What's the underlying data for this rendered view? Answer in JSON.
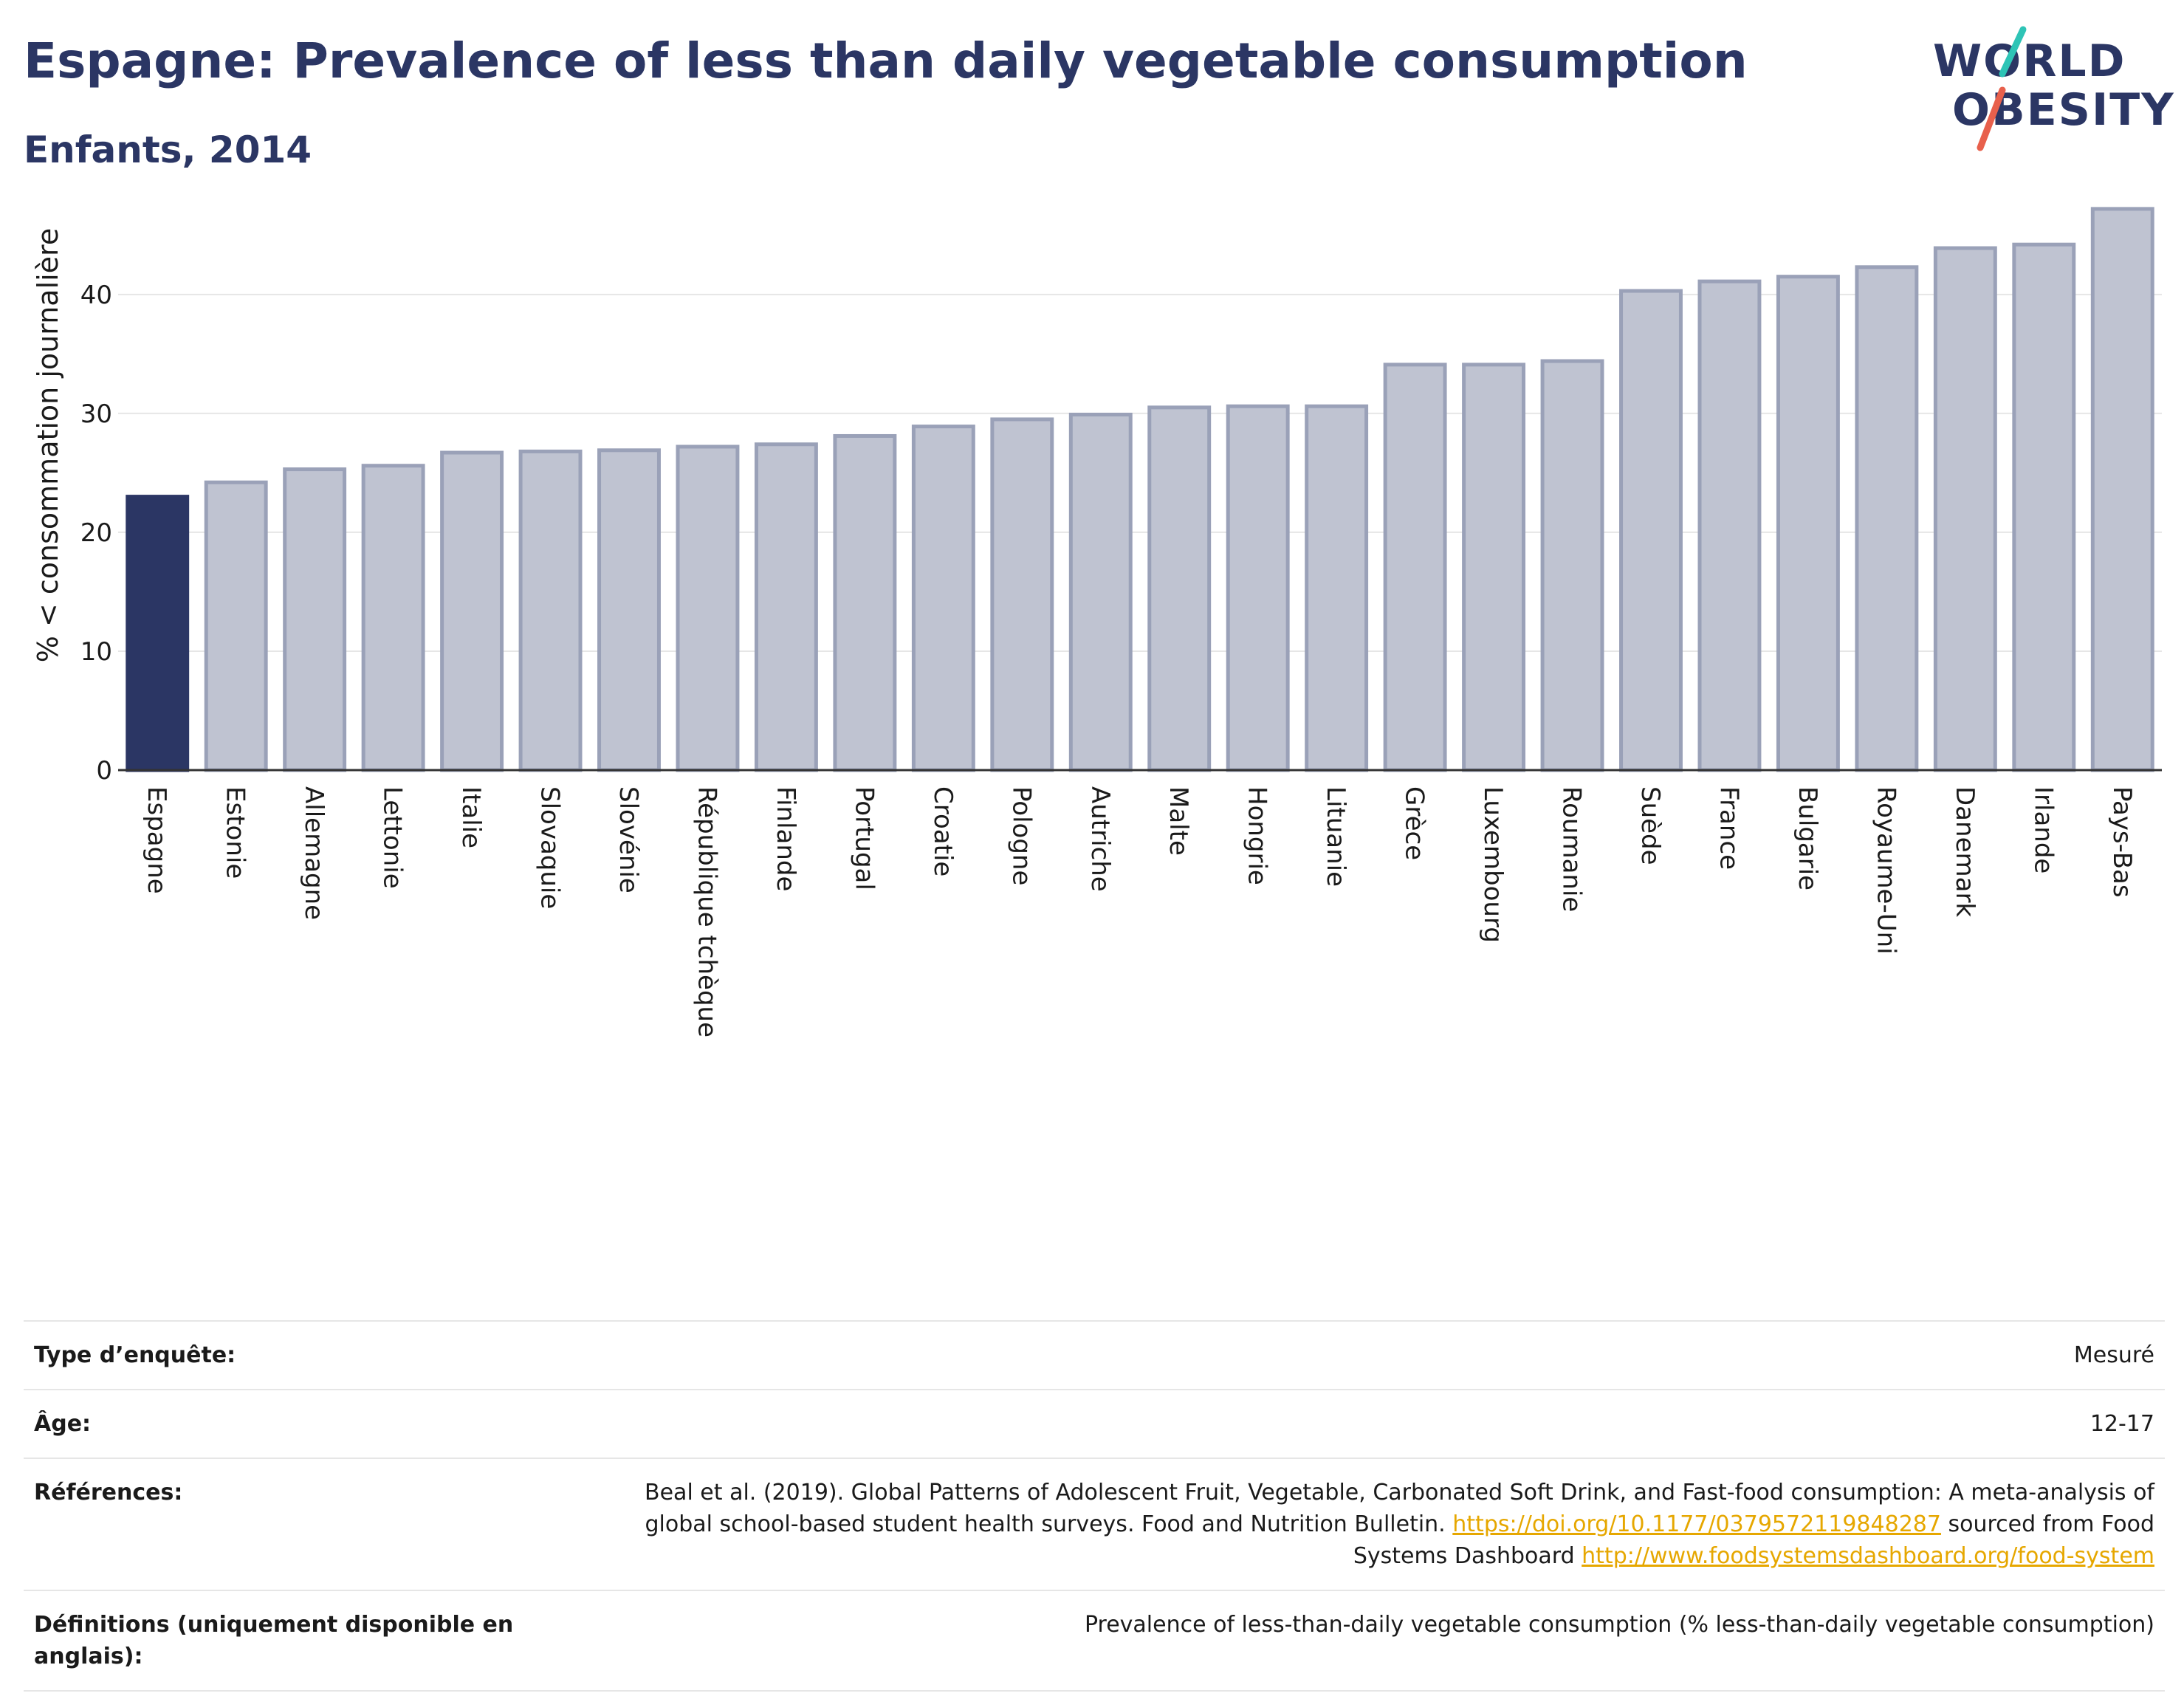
{
  "header": {
    "title": "Espagne: Prevalence of less than daily vegetable consumption",
    "subtitle": "Enfants, 2014"
  },
  "logo": {
    "line1": "WORLD",
    "line2": "OBESITY",
    "slash_colors": [
      "#2ec4b6",
      "#e8604c"
    ]
  },
  "colors": {
    "highlight": "#2b3664",
    "bar": "#bfc3d1",
    "bar_border": "#9aa1b8",
    "grid": "#e6e6e6",
    "axis": "#333333",
    "link": "#e6a700"
  },
  "chart_data": {
    "type": "bar",
    "title": "Espagne: Prevalence of less than daily vegetable consumption",
    "subtitle": "Enfants, 2014",
    "xlabel": "",
    "ylabel": "% < consommation journalière",
    "ylim": [
      0,
      48
    ],
    "yticks": [
      0,
      10,
      20,
      30,
      40
    ],
    "grid": true,
    "highlight_category": "Espagne",
    "categories": [
      "Espagne",
      "Estonie",
      "Allemagne",
      "Lettonie",
      "Italie",
      "Slovaquie",
      "Slovénie",
      "République tchèque",
      "Finlande",
      "Portugal",
      "Croatie",
      "Pologne",
      "Autriche",
      "Malte",
      "Hongrie",
      "Lituanie",
      "Grèce",
      "Luxembourg",
      "Roumanie",
      "Suède",
      "France",
      "Bulgarie",
      "Royaume-Uni",
      "Danemark",
      "Irlande",
      "Pays-Bas"
    ],
    "values": [
      23.0,
      24.2,
      25.3,
      25.6,
      26.7,
      26.8,
      26.9,
      27.2,
      27.4,
      28.1,
      28.9,
      29.5,
      29.9,
      30.5,
      30.6,
      30.6,
      34.1,
      34.1,
      34.4,
      40.3,
      41.1,
      41.5,
      42.3,
      43.9,
      44.2,
      47.2
    ]
  },
  "meta": {
    "survey_type_label": "Type d’enquête:",
    "survey_type_value": "Mesuré",
    "age_label": "Âge:",
    "age_value": "12-17",
    "references_label": "Références:",
    "references_text1": "Beal et al. (2019). Global Patterns of Adolescent Fruit, Vegetable, Carbonated Soft Drink, and Fast-food consumption: A meta-analysis of global school-based student health surveys. Food and Nutrition Bulletin.",
    "references_link1": "https://doi.org/10.1177/0379572119848287",
    "references_text2": "sourced from Food Systems Dashboard",
    "references_link2": "http://www.foodsystemsdashboard.org/food-system",
    "definitions_label": "Définitions (uniquement disponible en anglais):",
    "definitions_value": "Prevalence of less-than-daily vegetable consumption (% less-than-daily vegetable consumption)"
  }
}
